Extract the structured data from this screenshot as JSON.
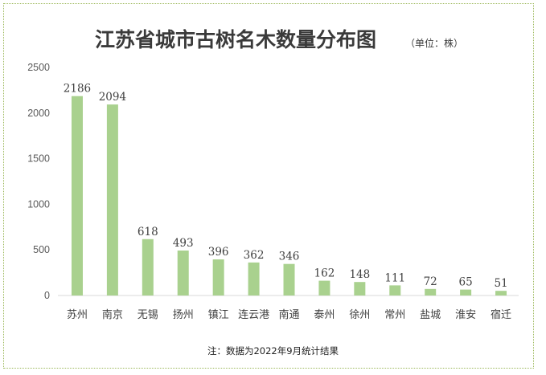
{
  "chart_data": {
    "type": "bar",
    "title": "江苏省城市古树名木数量分布图",
    "subtitle": "（单位：株）",
    "categories": [
      "苏州",
      "南京",
      "无锡",
      "扬州",
      "镇江",
      "连云港",
      "南通",
      "泰州",
      "徐州",
      "常州",
      "盐城",
      "淮安",
      "宿迁"
    ],
    "values": [
      2186,
      2094,
      618,
      493,
      396,
      362,
      346,
      162,
      148,
      111,
      72,
      65,
      51
    ],
    "ylim": [
      0,
      2500
    ],
    "yticks": [
      0,
      500,
      1000,
      1500,
      2000,
      2500
    ],
    "xlabel": "",
    "ylabel": "",
    "grid": false,
    "legend": "none",
    "bar_color": "#a9d18e",
    "note": "注：数据为2022年9月统计结果"
  }
}
